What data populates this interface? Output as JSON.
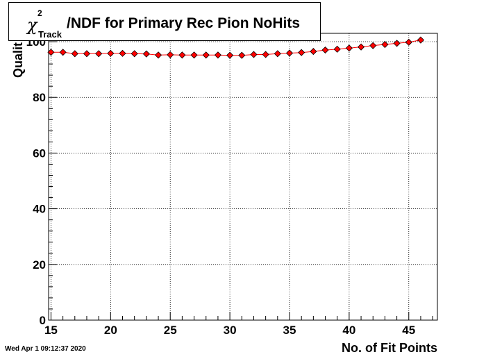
{
  "title": {
    "symbol": "χ",
    "superscript": "2",
    "subscript": "Track",
    "text": "/NDF for Primary Rec Pion NoHits"
  },
  "ylabel": "Qualit",
  "xlabel": "No. of Fit Points",
  "timestamp": "Wed Apr  1 09:12:37 2020",
  "colors": {
    "marker": "#ff0000",
    "line": "#ff0000",
    "grid": "#000000"
  },
  "chart_data": {
    "type": "scatter",
    "title": "χ²_Track/NDF for Primary Rec Pion NoHits",
    "xlabel": "No. of Fit Points",
    "ylabel": "Qualit",
    "xlim": [
      14.8,
      47.4
    ],
    "ylim": [
      0,
      103
    ],
    "x_ticks": [
      15,
      20,
      25,
      30,
      35,
      40,
      45
    ],
    "y_ticks": [
      0,
      20,
      40,
      60,
      80,
      100
    ],
    "grid": true,
    "series": [
      {
        "x": [
          15,
          16,
          17,
          18,
          19,
          20,
          21,
          22,
          23,
          24,
          25,
          26,
          27,
          28,
          29,
          30,
          31,
          32,
          33,
          34,
          35,
          36,
          37,
          38,
          39,
          40,
          41,
          42,
          43,
          44,
          45,
          46
        ],
        "y": [
          96.2,
          96.2,
          95.7,
          95.7,
          95.7,
          95.8,
          95.8,
          95.7,
          95.6,
          95.2,
          95.3,
          95.2,
          95.2,
          95.2,
          95.2,
          95.1,
          95.1,
          95.4,
          95.4,
          95.7,
          95.9,
          96.1,
          96.5,
          97.0,
          97.3,
          97.7,
          98.1,
          98.6,
          99.0,
          99.4,
          99.8,
          100.6
        ]
      }
    ]
  }
}
